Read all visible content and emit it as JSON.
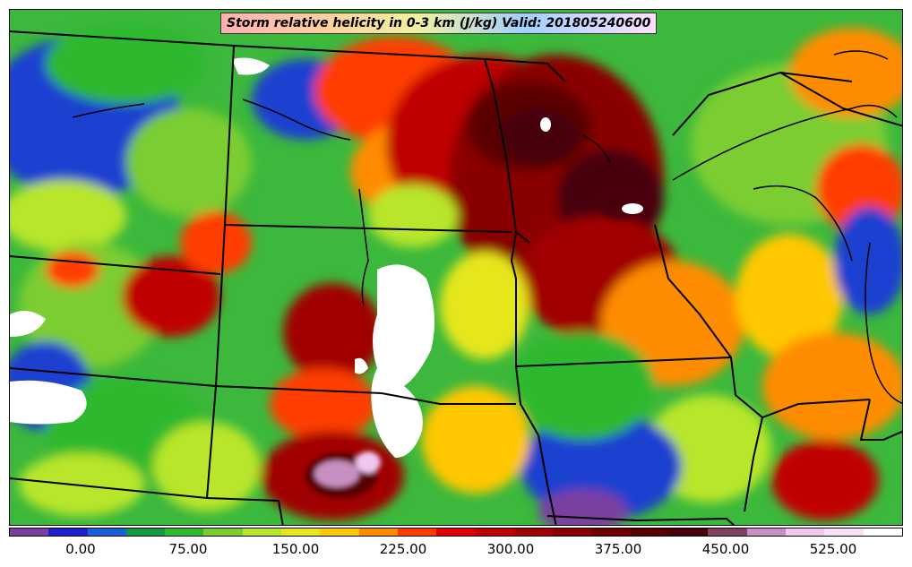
{
  "title": "Storm relative helicity in 0-3 km (J/kg) Valid: 201805240600",
  "colorbar": {
    "colors": [
      "#7a3fa0",
      "#2020d0",
      "#1a5fd8",
      "#139a40",
      "#2eb82e",
      "#7ccd30",
      "#b8e62a",
      "#e6e61e",
      "#ffc800",
      "#ff8c00",
      "#ff3c00",
      "#e00000",
      "#c00000",
      "#a00000",
      "#8a0000",
      "#700000",
      "#5a0000",
      "#4a0008",
      "#804060",
      "#c890c0",
      "#f0c8f0",
      "#f8e0f8",
      "#ffffff"
    ],
    "tick_labels": [
      "0.00",
      "75.00",
      "150.00",
      "225.00",
      "300.00",
      "375.00",
      "450.00",
      "525.00"
    ]
  }
}
